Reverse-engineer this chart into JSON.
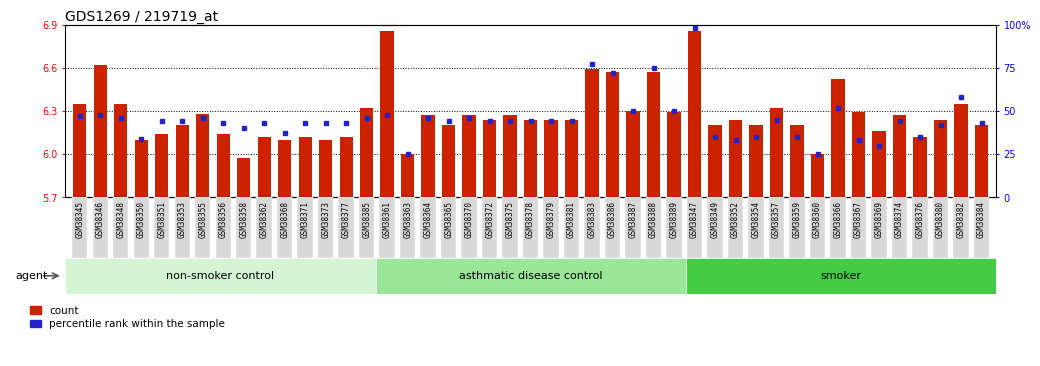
{
  "title": "GDS1269 / 219719_at",
  "categories": [
    "GSM38345",
    "GSM38346",
    "GSM38348",
    "GSM38350",
    "GSM38351",
    "GSM38353",
    "GSM38355",
    "GSM38356",
    "GSM38358",
    "GSM38362",
    "GSM38368",
    "GSM38371",
    "GSM38373",
    "GSM38377",
    "GSM38385",
    "GSM38361",
    "GSM38363",
    "GSM38364",
    "GSM38365",
    "GSM38370",
    "GSM38372",
    "GSM38375",
    "GSM38378",
    "GSM38379",
    "GSM38381",
    "GSM38383",
    "GSM38386",
    "GSM38387",
    "GSM38388",
    "GSM38389",
    "GSM38347",
    "GSM38349",
    "GSM38352",
    "GSM38354",
    "GSM38357",
    "GSM38359",
    "GSM38360",
    "GSM38366",
    "GSM38367",
    "GSM38369",
    "GSM38374",
    "GSM38376",
    "GSM38380",
    "GSM38382",
    "GSM38384"
  ],
  "red_values": [
    6.35,
    6.62,
    6.35,
    6.1,
    6.14,
    6.2,
    6.28,
    6.14,
    5.97,
    6.12,
    6.1,
    6.12,
    6.1,
    6.12,
    6.32,
    6.86,
    6.0,
    6.27,
    6.2,
    6.27,
    6.24,
    6.27,
    6.24,
    6.24,
    6.24,
    6.59,
    6.57,
    6.3,
    6.57,
    6.29,
    6.86,
    6.2,
    6.24,
    6.2,
    6.32,
    6.2,
    6.0,
    6.52,
    6.29,
    6.16,
    6.27,
    6.12,
    6.24,
    6.35,
    6.2
  ],
  "blue_values": [
    47,
    48,
    46,
    34,
    44,
    44,
    46,
    43,
    40,
    43,
    37,
    43,
    43,
    43,
    46,
    48,
    25,
    46,
    44,
    46,
    44,
    44,
    44,
    44,
    44,
    77,
    72,
    50,
    75,
    50,
    98,
    35,
    33,
    35,
    45,
    35,
    25,
    52,
    33,
    30,
    44,
    35,
    42,
    58,
    43
  ],
  "groups": [
    {
      "label": "non-smoker control",
      "start": 0,
      "end": 15,
      "color": "#d4f5d4"
    },
    {
      "label": "asthmatic disease control",
      "start": 15,
      "end": 30,
      "color": "#99e699"
    },
    {
      "label": "smoker",
      "start": 30,
      "end": 45,
      "color": "#44cc44"
    }
  ],
  "ylim_left": [
    5.7,
    6.9
  ],
  "ylim_right": [
    0,
    100
  ],
  "yticks_left": [
    5.7,
    6.0,
    6.3,
    6.6,
    6.9
  ],
  "yticks_right": [
    0,
    25,
    50,
    75,
    100
  ],
  "ytick_labels_right": [
    "0",
    "25",
    "50",
    "75",
    "100%"
  ],
  "bar_color": "#cc2200",
  "dot_color": "#2222cc",
  "title_fontsize": 10,
  "tick_fontsize": 7,
  "agent_label": "agent",
  "legend_count_label": "count",
  "legend_pct_label": "percentile rank within the sample",
  "group_label_fontsize": 8,
  "xtick_fontsize": 5.5
}
